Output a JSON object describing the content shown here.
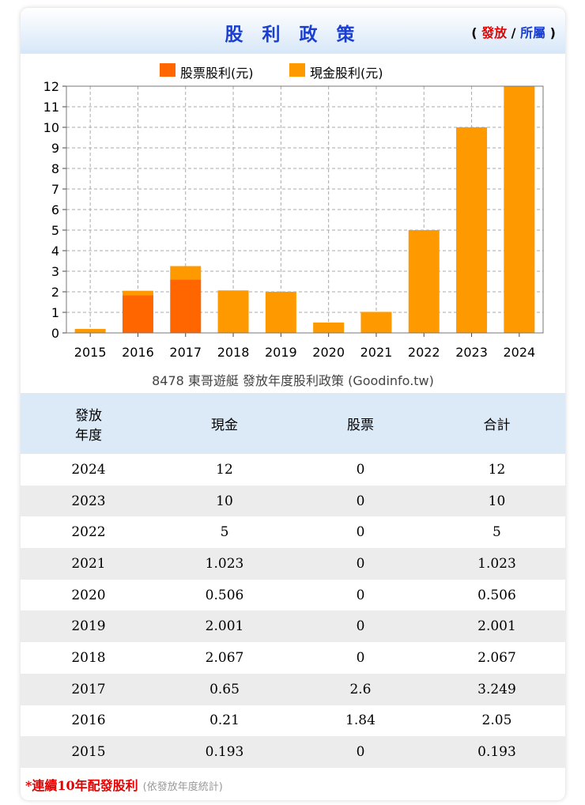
{
  "header": {
    "title": "股 利 政 策",
    "links_open": "( ",
    "link_paid": "發放",
    "link_sep": " / ",
    "link_belong": "所屬",
    "links_close": " )"
  },
  "colors": {
    "stock": "#ff6600",
    "cash": "#ff9900",
    "title": "#1a3fd0",
    "accent_red": "#e60000"
  },
  "chart_data": {
    "type": "bar",
    "stacked": true,
    "categories": [
      "2015",
      "2016",
      "2017",
      "2018",
      "2019",
      "2020",
      "2021",
      "2022",
      "2023",
      "2024"
    ],
    "series": [
      {
        "name": "股票股利(元)",
        "values": [
          0,
          1.84,
          2.6,
          0,
          0,
          0,
          0,
          0,
          0,
          0
        ]
      },
      {
        "name": "現金股利(元)",
        "values": [
          0.193,
          0.21,
          0.65,
          2.067,
          2.001,
          0.506,
          1.023,
          5,
          10,
          12
        ]
      }
    ],
    "ylim": [
      0,
      12
    ],
    "yticks": [
      0,
      1,
      2,
      3,
      4,
      5,
      6,
      7,
      8,
      9,
      10,
      11,
      12
    ],
    "grid": true,
    "legend": "top",
    "caption": "8478 東哥遊艇 發放年度股利政策 (Goodinfo.tw)"
  },
  "table": {
    "headers": [
      "發放\n年度",
      "現金",
      "股票",
      "合計"
    ],
    "rows": [
      [
        "2024",
        "12",
        "0",
        "12"
      ],
      [
        "2023",
        "10",
        "0",
        "10"
      ],
      [
        "2022",
        "5",
        "0",
        "5"
      ],
      [
        "2021",
        "1.023",
        "0",
        "1.023"
      ],
      [
        "2020",
        "0.506",
        "0",
        "0.506"
      ],
      [
        "2019",
        "2.001",
        "0",
        "2.001"
      ],
      [
        "2018",
        "2.067",
        "0",
        "2.067"
      ],
      [
        "2017",
        "0.65",
        "2.6",
        "3.249"
      ],
      [
        "2016",
        "0.21",
        "1.84",
        "2.05"
      ],
      [
        "2015",
        "0.193",
        "0",
        "0.193"
      ]
    ]
  },
  "note": {
    "main": "*連續10年配發股利",
    "sub": "(依發放年度統計)"
  }
}
